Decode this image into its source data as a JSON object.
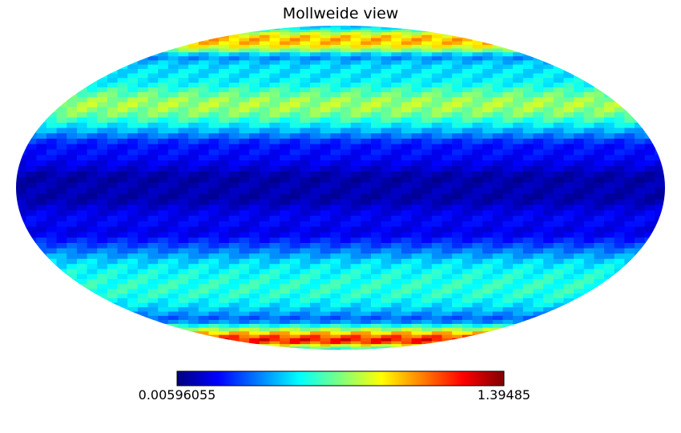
{
  "chart_data": {
    "type": "heatmap",
    "projection": "mollweide",
    "title": "Mollweide view",
    "colormap": "jet",
    "colorbar": {
      "orientation": "horizontal",
      "placement": "bottom",
      "min_label": "0.00596055",
      "max_label": "1.39485",
      "min": 0.00596055,
      "max": 1.39485
    },
    "grid": false,
    "latitude_profile": {
      "lat_deg": [
        -90,
        -85,
        -80,
        -75,
        -70,
        -65,
        -60,
        -55,
        -50,
        -45,
        -40,
        -35,
        -30,
        -25,
        -20,
        -15,
        -10,
        -5,
        0,
        5,
        10,
        15,
        20,
        25,
        30,
        35,
        40,
        45,
        50,
        55,
        60,
        65,
        70,
        75,
        80,
        85,
        90
      ],
      "values": [
        0.4,
        0.75,
        1.25,
        1.05,
        0.65,
        0.28,
        0.42,
        0.52,
        0.58,
        0.58,
        0.55,
        0.5,
        0.38,
        0.25,
        0.14,
        0.18,
        0.14,
        0.06,
        0.08,
        0.05,
        0.14,
        0.19,
        0.2,
        0.38,
        0.55,
        0.72,
        0.76,
        0.64,
        0.52,
        0.5,
        0.48,
        0.35,
        0.82,
        0.98,
        0.9,
        0.55,
        0.4
      ]
    },
    "longitude_ripple_amplitude": 0.06,
    "longitude_ripple_cycles": 48
  }
}
